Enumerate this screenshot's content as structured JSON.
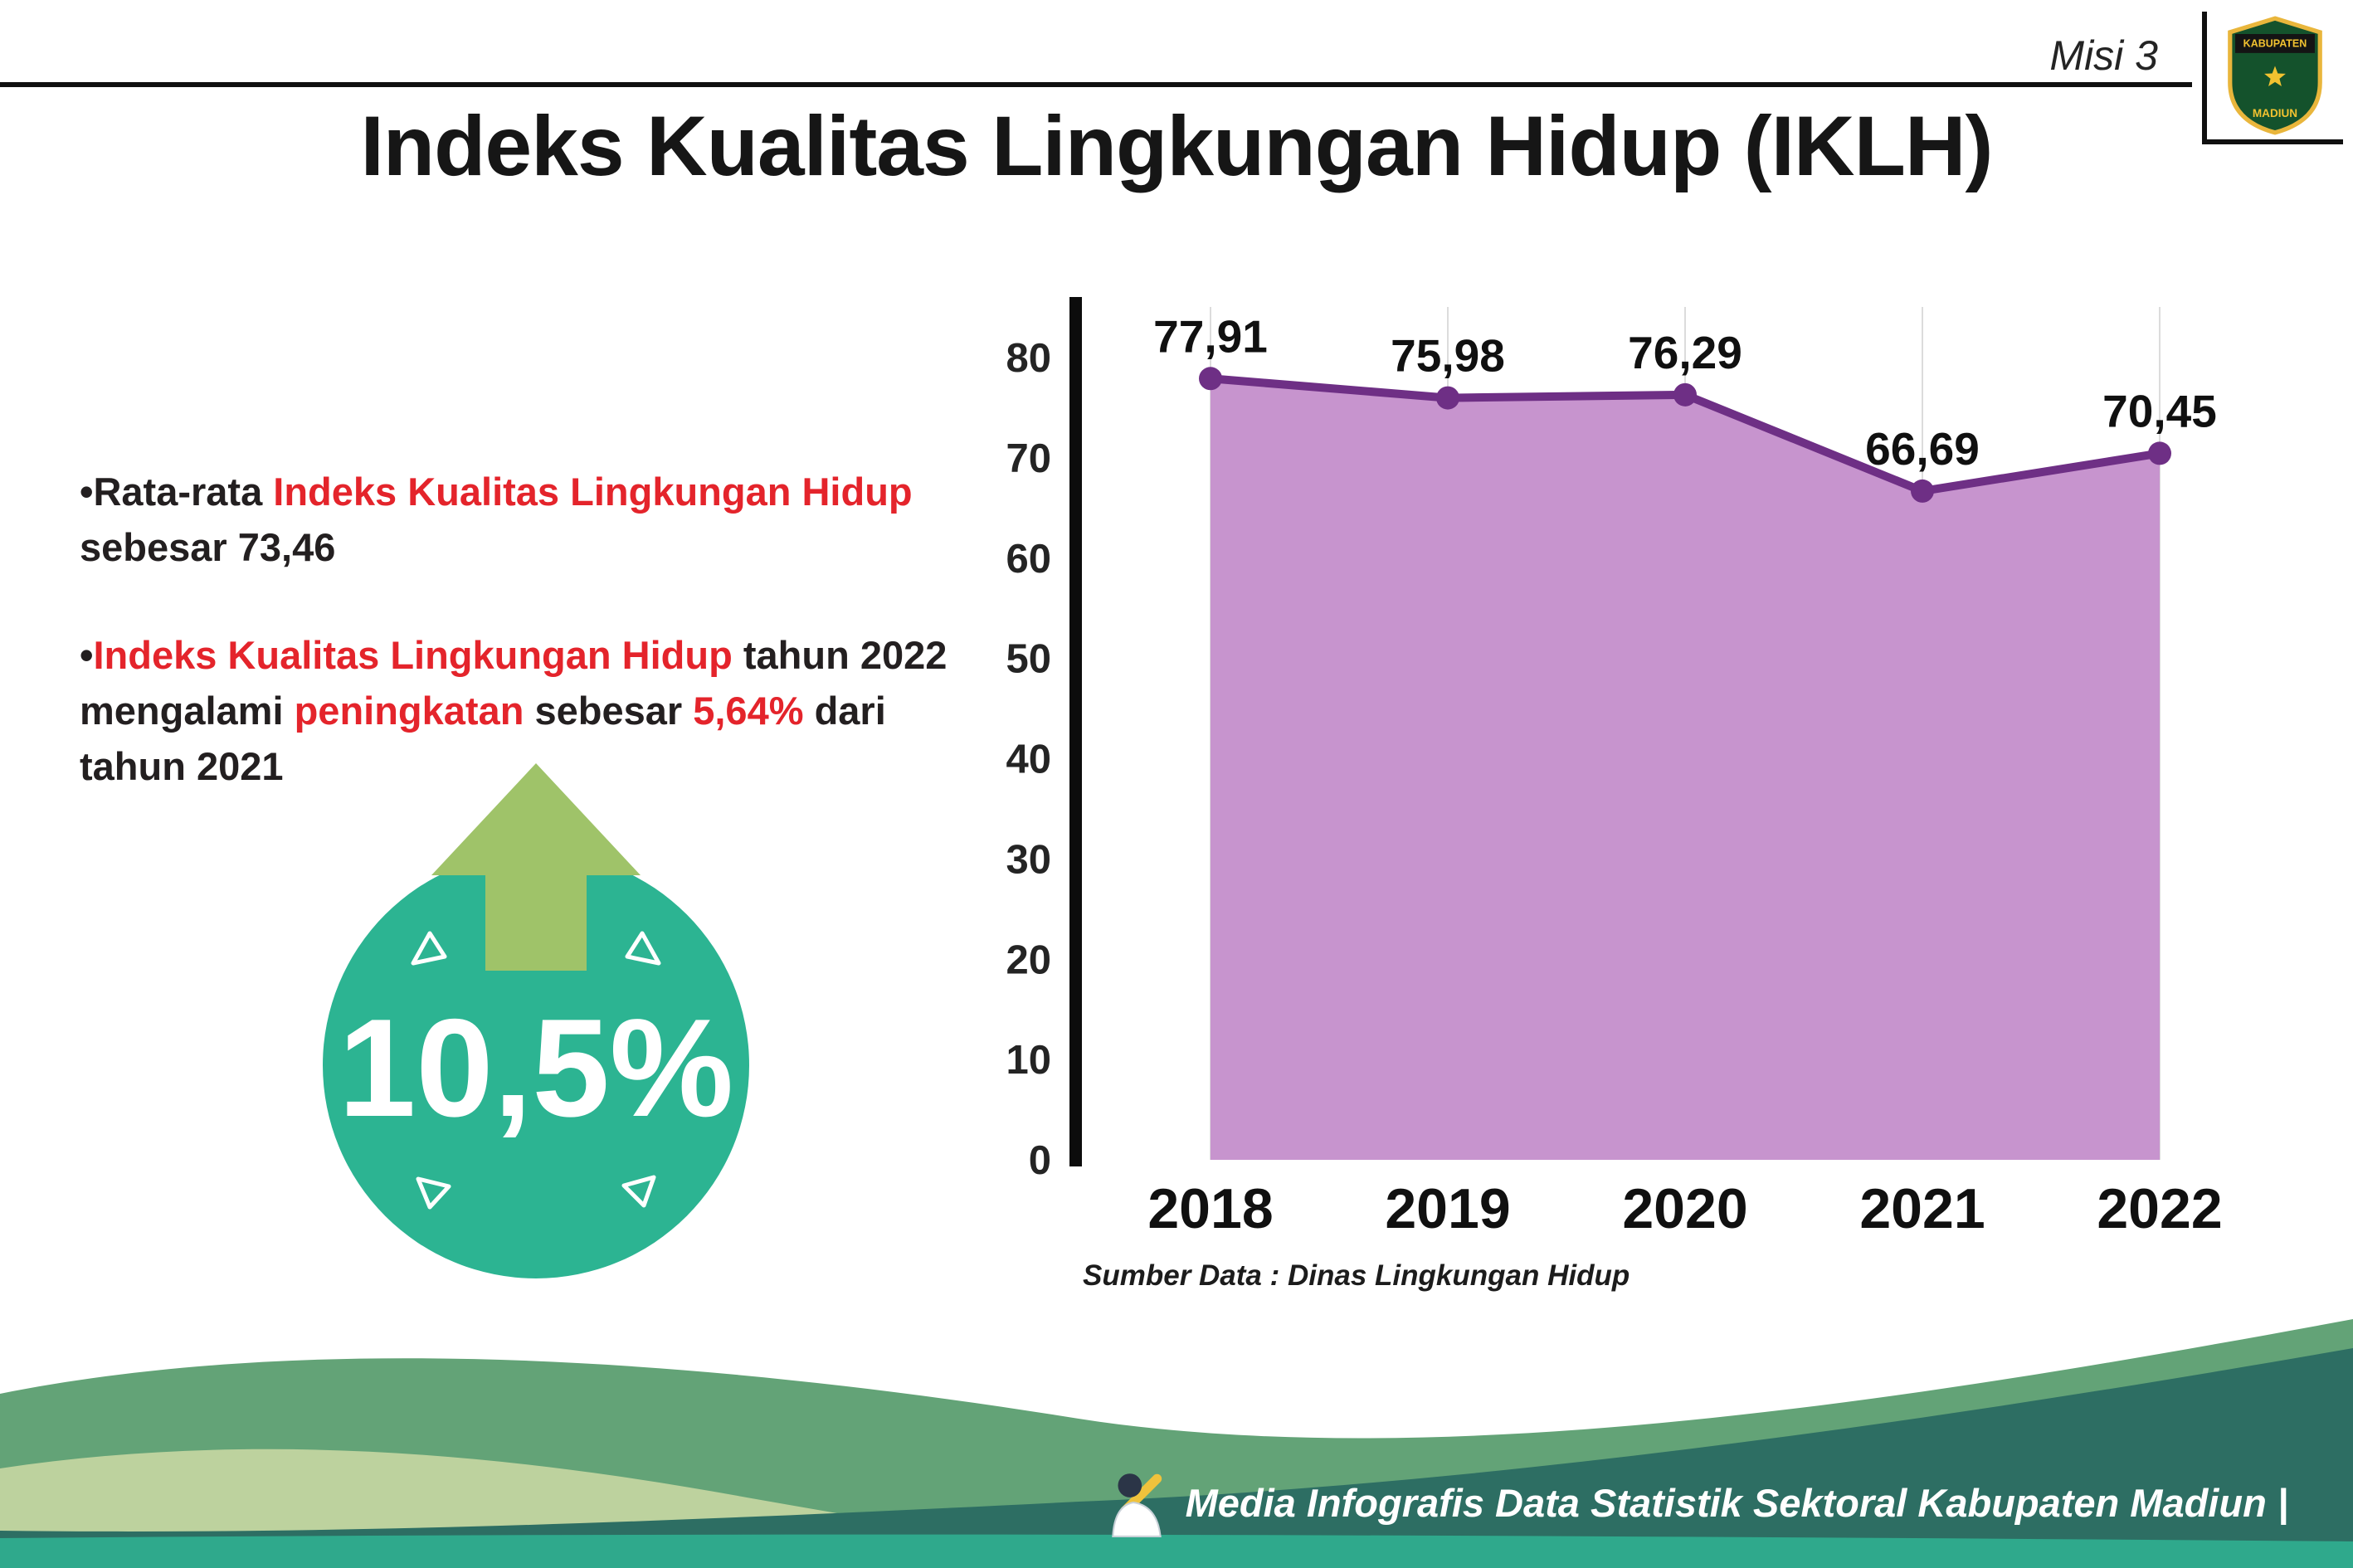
{
  "palette": {
    "red": "#e4242b",
    "circle_teal": "#2cb492",
    "arrow_green": "#9fc369",
    "f_green": "#63a377",
    "f_sage": "#bdd29e",
    "f_dark": "#2d6e63",
    "f_strip": "#2fa98c"
  },
  "header": {
    "misi_label": "Misi 3",
    "title": "Indeks Kualitas Lingkungan Hidup (IKLH)",
    "logo": {
      "kabupaten": "KABUPATEN",
      "madiun": "MADIUN"
    }
  },
  "bullets": {
    "marker": "•",
    "b1": {
      "s1": "Rata-rata ",
      "s2": "Indeks Kualitas Lingkungan Hidup",
      "s3": " sebesar 73,46"
    },
    "b2": {
      "s1": "Indeks Kualitas Lingkungan Hidup",
      "s2": " tahun 2022 mengalami ",
      "s3": "peningkatan",
      "s4": " sebesar ",
      "s5": "5,64%",
      "s6": " dari tahun 2021"
    }
  },
  "badge": {
    "value": "10,5%"
  },
  "chart_data": {
    "type": "area",
    "categories": [
      "2018",
      "2019",
      "2020",
      "2021",
      "2022"
    ],
    "values": [
      77.91,
      75.98,
      76.29,
      66.69,
      70.45
    ],
    "point_labels": [
      "77,91",
      "75,98",
      "76,29",
      "66,69",
      "70,45"
    ],
    "ylim": [
      0,
      80
    ],
    "yticks": [
      0,
      10,
      20,
      30,
      40,
      50,
      60,
      70,
      80
    ],
    "grid": "faint-vertical",
    "legend": "none",
    "fill_color": "#c794ce",
    "line_color": "#6e2f85",
    "source_note": "Sumber Data : Dinas Lingkungan Hidup"
  },
  "footer": {
    "caption": "Media Infografis Data Statistik Sektoral Kabupaten Madiun |"
  }
}
